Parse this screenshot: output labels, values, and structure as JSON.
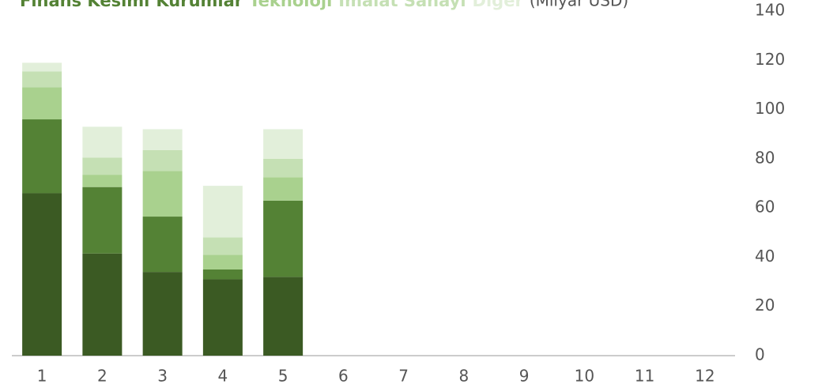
{
  "chart_data": {
    "type": "stacked_bar",
    "unit_label": "(Milyar USD)",
    "categories": [
      "1",
      "2",
      "3",
      "4",
      "5",
      "6",
      "7",
      "8",
      "9",
      "10",
      "11",
      "12"
    ],
    "series": [
      {
        "name": "Finans Kesimi",
        "color": "#3b5a23",
        "values": [
          66,
          41.5,
          34,
          31,
          32,
          null,
          null,
          null,
          null,
          null,
          null,
          null
        ]
      },
      {
        "name": "Kurumlar",
        "color": "#548235",
        "values": [
          30,
          27,
          22.5,
          4,
          31,
          null,
          null,
          null,
          null,
          null,
          null,
          null
        ]
      },
      {
        "name": "Teknoloji",
        "color": "#a9d18e",
        "values": [
          13,
          5,
          18.5,
          6,
          9.5,
          null,
          null,
          null,
          null,
          null,
          null,
          null
        ]
      },
      {
        "name": "İmalat Sanayi",
        "color": "#c5e0b4",
        "values": [
          6.5,
          7,
          8.5,
          7,
          7.5,
          null,
          null,
          null,
          null,
          null,
          null,
          null
        ]
      },
      {
        "name": "Diğer",
        "color": "#e2efda",
        "values": [
          3.5,
          12.5,
          8.5,
          21,
          12,
          null,
          null,
          null,
          null,
          null,
          null,
          null
        ]
      }
    ],
    "ylim": [
      0,
      140
    ],
    "yticks": [
      0,
      20,
      40,
      60,
      80,
      100,
      120,
      140
    ],
    "y_axis_side": "right"
  }
}
